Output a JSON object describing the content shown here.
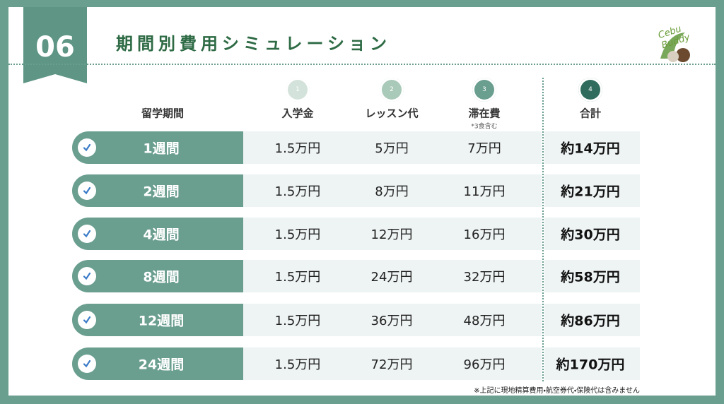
{
  "badge": "06",
  "title": "期間別費用シミュレーション",
  "logo": "Cebu Buddy",
  "table": {
    "header": {
      "period": "留学期間",
      "columns": [
        {
          "step": "1",
          "label": "入学金"
        },
        {
          "step": "2",
          "label": "レッスン代"
        },
        {
          "step": "3",
          "label": "滞在費",
          "note": "*3食含む"
        },
        {
          "step": "4",
          "label": "合計"
        }
      ]
    },
    "rows": [
      [
        "1週間",
        "1.5万円",
        "5万円",
        "7万円",
        "約14万円"
      ],
      [
        "2週間",
        "1.5万円",
        "8万円",
        "11万円",
        "約21万円"
      ],
      [
        "4週間",
        "1.5万円",
        "12万円",
        "16万円",
        "約30万円"
      ],
      [
        "8週間",
        "1.5万円",
        "24万円",
        "32万円",
        "約58万円"
      ],
      [
        "12週間",
        "1.5万円",
        "36万円",
        "48万円",
        "約86万円"
      ],
      [
        "24週間",
        "1.5万円",
        "72万円",
        "96万円",
        "約170万円"
      ]
    ]
  },
  "footnote": "※上記に現地精算費用・航空券代・保険代は含みません"
}
